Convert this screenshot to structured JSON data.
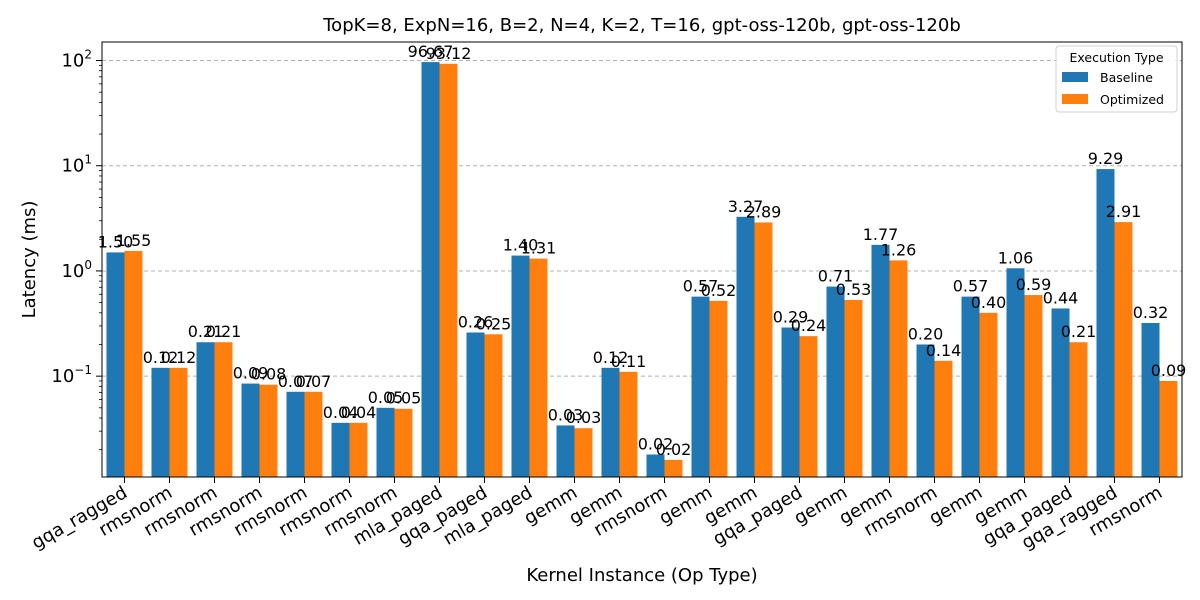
{
  "chart_data": {
    "type": "bar",
    "title": "TopK=8, ExpN=16, B=2, N=4, K=2, T=16, gpt-oss-120b, gpt-oss-120b",
    "xlabel": "Kernel Instance (Op Type)",
    "ylabel": "Latency (ms)",
    "yscale": "log",
    "ylim": [
      0.011,
      150
    ],
    "y_ticks": [
      {
        "value": 0.1,
        "base": "10",
        "exp": "−1"
      },
      {
        "value": 1,
        "base": "10",
        "exp": "0"
      },
      {
        "value": 10,
        "base": "10",
        "exp": "1"
      },
      {
        "value": 100,
        "base": "10",
        "exp": "2"
      }
    ],
    "grid": true,
    "categories": [
      "gqa_ragged",
      "rmsnorm",
      "rmsnorm",
      "rmsnorm",
      "rmsnorm",
      "rmsnorm",
      "rmsnorm",
      "mla_paged",
      "gqa_paged",
      "mla_paged",
      "gemm",
      "gemm",
      "rmsnorm",
      "gemm",
      "gemm",
      "gqa_paged",
      "gemm",
      "gemm",
      "rmsnorm",
      "gemm",
      "gemm",
      "gqa_paged",
      "gqa_ragged",
      "rmsnorm"
    ],
    "legend": {
      "title": "Execution Type",
      "position": "top-right"
    },
    "series": [
      {
        "name": "Baseline",
        "color": "#1f77b4",
        "values": [
          1.5,
          0.12,
          0.21,
          0.085,
          0.071,
          0.036,
          0.05,
          96.67,
          0.26,
          1.4,
          0.034,
          0.12,
          0.018,
          0.57,
          3.27,
          0.29,
          0.71,
          1.77,
          0.2,
          0.57,
          1.06,
          0.44,
          9.29,
          0.32
        ],
        "labels": [
          "1.50",
          "0.12",
          "0.21",
          "0.09",
          "0.07",
          "0.04",
          "0.05",
          "96.67",
          "0.26",
          "1.40",
          "0.03",
          "0.12",
          "0.02",
          "0.57",
          "3.27",
          "0.29",
          "0.71",
          "1.77",
          "0.20",
          "0.57",
          "1.06",
          "0.44",
          "9.29",
          "0.32"
        ]
      },
      {
        "name": "Optimized",
        "color": "#ff7f0e",
        "values": [
          1.55,
          0.12,
          0.21,
          0.083,
          0.071,
          0.036,
          0.049,
          93.12,
          0.25,
          1.31,
          0.032,
          0.11,
          0.016,
          0.52,
          2.89,
          0.24,
          0.53,
          1.26,
          0.14,
          0.4,
          0.59,
          0.21,
          2.91,
          0.09
        ],
        "labels": [
          "1.55",
          "0.12",
          "0.21",
          "0.08",
          "0.07",
          "0.04",
          "0.05",
          "93.12",
          "0.25",
          "1.31",
          "0.03",
          "0.11",
          "0.02",
          "0.52",
          "2.89",
          "0.24",
          "0.53",
          "1.26",
          "0.14",
          "0.40",
          "0.59",
          "0.21",
          "2.91",
          "0.09"
        ]
      }
    ]
  }
}
